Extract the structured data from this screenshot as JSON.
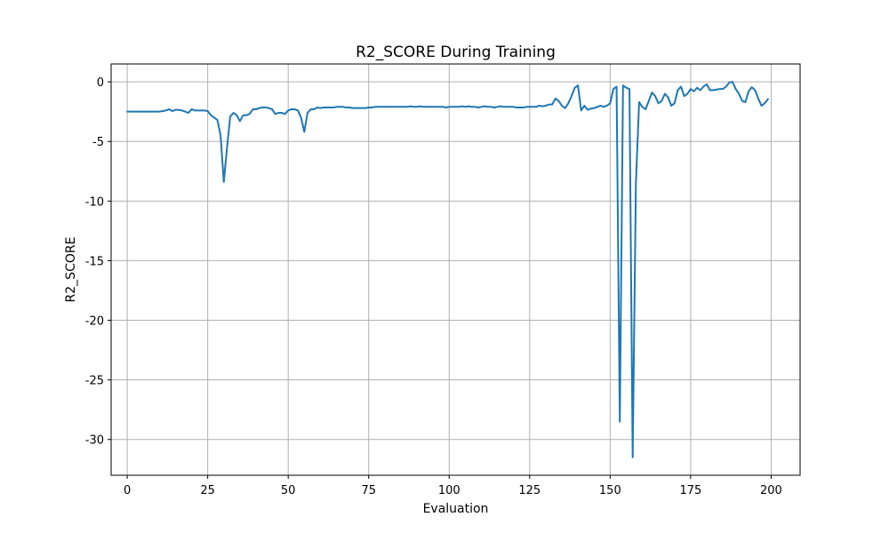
{
  "chart_data": {
    "type": "line",
    "title": "R2_SCORE During Training",
    "xlabel": "Evaluation",
    "ylabel": "R2_SCORE",
    "xlim": [
      -5,
      209
    ],
    "ylim": [
      -33,
      1.5
    ],
    "grid": true,
    "legend": "none",
    "xticks": [
      0,
      25,
      50,
      75,
      100,
      125,
      150,
      175,
      200
    ],
    "yticks": [
      0,
      -5,
      -10,
      -15,
      -20,
      -25,
      -30
    ],
    "series": [
      {
        "color": "#1f77b4",
        "points": [
          [
            0,
            -2.5
          ],
          [
            1,
            -2.5
          ],
          [
            2,
            -2.5
          ],
          [
            3,
            -2.5
          ],
          [
            4,
            -2.5
          ],
          [
            5,
            -2.5
          ],
          [
            6,
            -2.5
          ],
          [
            7,
            -2.5
          ],
          [
            8,
            -2.5
          ],
          [
            9,
            -2.5
          ],
          [
            10,
            -2.5
          ],
          [
            11,
            -2.45
          ],
          [
            12,
            -2.4
          ],
          [
            13,
            -2.3
          ],
          [
            14,
            -2.45
          ],
          [
            15,
            -2.35
          ],
          [
            16,
            -2.35
          ],
          [
            17,
            -2.4
          ],
          [
            18,
            -2.5
          ],
          [
            19,
            -2.6
          ],
          [
            20,
            -2.3
          ],
          [
            21,
            -2.4
          ],
          [
            22,
            -2.4
          ],
          [
            23,
            -2.4
          ],
          [
            24,
            -2.4
          ],
          [
            25,
            -2.45
          ],
          [
            26,
            -2.8
          ],
          [
            27,
            -3.0
          ],
          [
            28,
            -3.2
          ],
          [
            29,
            -4.5
          ],
          [
            30,
            -8.4
          ],
          [
            31,
            -5.5
          ],
          [
            32,
            -2.9
          ],
          [
            33,
            -2.6
          ],
          [
            34,
            -2.8
          ],
          [
            35,
            -3.3
          ],
          [
            36,
            -2.8
          ],
          [
            37,
            -2.8
          ],
          [
            38,
            -2.7
          ],
          [
            39,
            -2.3
          ],
          [
            40,
            -2.3
          ],
          [
            41,
            -2.2
          ],
          [
            42,
            -2.15
          ],
          [
            43,
            -2.15
          ],
          [
            44,
            -2.2
          ],
          [
            45,
            -2.3
          ],
          [
            46,
            -2.7
          ],
          [
            47,
            -2.6
          ],
          [
            48,
            -2.6
          ],
          [
            49,
            -2.7
          ],
          [
            50,
            -2.4
          ],
          [
            51,
            -2.3
          ],
          [
            52,
            -2.3
          ],
          [
            53,
            -2.4
          ],
          [
            54,
            -3.0
          ],
          [
            55,
            -4.2
          ],
          [
            56,
            -2.6
          ],
          [
            57,
            -2.3
          ],
          [
            58,
            -2.3
          ],
          [
            59,
            -2.15
          ],
          [
            60,
            -2.2
          ],
          [
            61,
            -2.15
          ],
          [
            62,
            -2.15
          ],
          [
            63,
            -2.15
          ],
          [
            64,
            -2.15
          ],
          [
            65,
            -2.1
          ],
          [
            66,
            -2.1
          ],
          [
            67,
            -2.1
          ],
          [
            68,
            -2.15
          ],
          [
            69,
            -2.15
          ],
          [
            70,
            -2.2
          ],
          [
            71,
            -2.2
          ],
          [
            72,
            -2.2
          ],
          [
            73,
            -2.2
          ],
          [
            74,
            -2.2
          ],
          [
            75,
            -2.15
          ],
          [
            76,
            -2.15
          ],
          [
            77,
            -2.1
          ],
          [
            78,
            -2.1
          ],
          [
            79,
            -2.1
          ],
          [
            80,
            -2.1
          ],
          [
            81,
            -2.1
          ],
          [
            82,
            -2.1
          ],
          [
            83,
            -2.1
          ],
          [
            84,
            -2.1
          ],
          [
            85,
            -2.1
          ],
          [
            86,
            -2.1
          ],
          [
            87,
            -2.1
          ],
          [
            88,
            -2.05
          ],
          [
            89,
            -2.1
          ],
          [
            90,
            -2.1
          ],
          [
            91,
            -2.05
          ],
          [
            92,
            -2.1
          ],
          [
            93,
            -2.1
          ],
          [
            94,
            -2.1
          ],
          [
            95,
            -2.1
          ],
          [
            96,
            -2.1
          ],
          [
            97,
            -2.1
          ],
          [
            98,
            -2.1
          ],
          [
            99,
            -2.15
          ],
          [
            100,
            -2.1
          ],
          [
            101,
            -2.1
          ],
          [
            102,
            -2.1
          ],
          [
            103,
            -2.1
          ],
          [
            104,
            -2.05
          ],
          [
            105,
            -2.1
          ],
          [
            106,
            -2.05
          ],
          [
            107,
            -2.1
          ],
          [
            108,
            -2.1
          ],
          [
            109,
            -2.15
          ],
          [
            110,
            -2.1
          ],
          [
            111,
            -2.05
          ],
          [
            112,
            -2.1
          ],
          [
            113,
            -2.1
          ],
          [
            114,
            -2.15
          ],
          [
            115,
            -2.1
          ],
          [
            116,
            -2.05
          ],
          [
            117,
            -2.1
          ],
          [
            118,
            -2.1
          ],
          [
            119,
            -2.1
          ],
          [
            120,
            -2.1
          ],
          [
            121,
            -2.15
          ],
          [
            122,
            -2.15
          ],
          [
            123,
            -2.15
          ],
          [
            124,
            -2.1
          ],
          [
            125,
            -2.1
          ],
          [
            126,
            -2.1
          ],
          [
            127,
            -2.1
          ],
          [
            128,
            -2.0
          ],
          [
            129,
            -2.05
          ],
          [
            130,
            -2.0
          ],
          [
            131,
            -1.9
          ],
          [
            132,
            -1.9
          ],
          [
            133,
            -1.4
          ],
          [
            134,
            -1.6
          ],
          [
            135,
            -2.0
          ],
          [
            136,
            -2.2
          ],
          [
            137,
            -1.8
          ],
          [
            138,
            -1.2
          ],
          [
            139,
            -0.5
          ],
          [
            140,
            -0.3
          ],
          [
            141,
            -2.4
          ],
          [
            142,
            -2.0
          ],
          [
            143,
            -2.35
          ],
          [
            144,
            -2.25
          ],
          [
            145,
            -2.2
          ],
          [
            146,
            -2.1
          ],
          [
            147,
            -2.0
          ],
          [
            148,
            -2.1
          ],
          [
            149,
            -2.0
          ],
          [
            150,
            -1.8
          ],
          [
            151,
            -0.6
          ],
          [
            152,
            -0.4
          ],
          [
            153,
            -28.5
          ],
          [
            154,
            -0.3
          ],
          [
            155,
            -0.5
          ],
          [
            156,
            -0.6
          ],
          [
            157,
            -31.5
          ],
          [
            158,
            -8.5
          ],
          [
            159,
            -1.7
          ],
          [
            160,
            -2.1
          ],
          [
            161,
            -2.3
          ],
          [
            162,
            -1.6
          ],
          [
            163,
            -0.9
          ],
          [
            164,
            -1.2
          ],
          [
            165,
            -1.8
          ],
          [
            166,
            -1.6
          ],
          [
            167,
            -1.0
          ],
          [
            168,
            -1.3
          ],
          [
            169,
            -2.0
          ],
          [
            170,
            -1.8
          ],
          [
            171,
            -0.7
          ],
          [
            172,
            -0.4
          ],
          [
            173,
            -1.2
          ],
          [
            174,
            -1.0
          ],
          [
            175,
            -0.6
          ],
          [
            176,
            -0.8
          ],
          [
            177,
            -0.5
          ],
          [
            178,
            -0.7
          ],
          [
            179,
            -0.4
          ],
          [
            180,
            -0.2
          ],
          [
            181,
            -0.7
          ],
          [
            182,
            -0.7
          ],
          [
            183,
            -0.65
          ],
          [
            184,
            -0.6
          ],
          [
            185,
            -0.6
          ],
          [
            186,
            -0.4
          ],
          [
            187,
            -0.05
          ],
          [
            188,
            0.0
          ],
          [
            189,
            -0.6
          ],
          [
            190,
            -1.0
          ],
          [
            191,
            -1.6
          ],
          [
            192,
            -1.7
          ],
          [
            193,
            -0.8
          ],
          [
            194,
            -0.45
          ],
          [
            195,
            -0.7
          ],
          [
            196,
            -1.4
          ],
          [
            197,
            -2.0
          ],
          [
            198,
            -1.8
          ],
          [
            199,
            -1.45
          ]
        ]
      }
    ]
  }
}
